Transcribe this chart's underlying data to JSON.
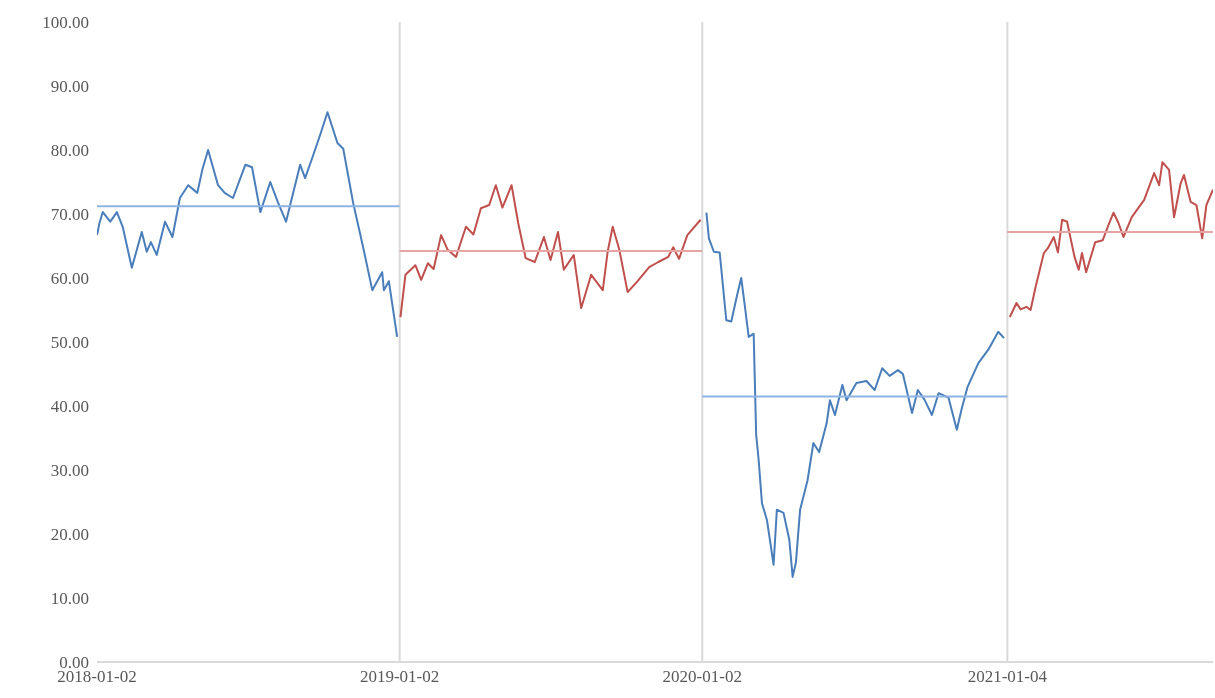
{
  "chart_data": {
    "type": "line",
    "marker": "none",
    "line_style": "solid",
    "grid": false,
    "legend": false,
    "xlim": [
      "2018-01-02",
      "2021-09-09"
    ],
    "xticks": [
      "2018-01-02",
      "2019-01-02",
      "2020-01-02",
      "2021-01-04"
    ],
    "ylim": [
      0,
      100
    ],
    "yticks": [
      {
        "value": 0,
        "label": "0.00"
      },
      {
        "value": 10,
        "label": "10.00"
      },
      {
        "value": 20,
        "label": "20.00"
      },
      {
        "value": 30,
        "label": "30.00"
      },
      {
        "value": 40,
        "label": "40.00"
      },
      {
        "value": 50,
        "label": "50.00"
      },
      {
        "value": 60,
        "label": "60.00"
      },
      {
        "value": 70,
        "label": "70.00"
      },
      {
        "value": 80,
        "label": "80.00"
      },
      {
        "value": 90,
        "label": "90.00"
      },
      {
        "value": 100,
        "label": "100.00"
      }
    ],
    "ref_lines": [
      {
        "axis": "x",
        "value": "2019-01-02",
        "color": "#d9d9d9"
      },
      {
        "axis": "x",
        "value": "2020-01-02",
        "color": "#d9d9d9"
      },
      {
        "axis": "x",
        "value": "2021-01-04",
        "color": "#d9d9d9"
      }
    ],
    "series": [
      {
        "color": "#4a7ebb",
        "x": [
          "2018-01-02",
          "2018-01-05",
          "2018-01-09",
          "2018-01-18",
          "2018-01-26",
          "2018-02-02",
          "2018-02-13",
          "2018-02-25",
          "2018-03-03",
          "2018-03-08",
          "2018-03-15",
          "2018-03-25",
          "2018-04-03",
          "2018-04-12",
          "2018-04-22",
          "2018-05-03",
          "2018-05-09",
          "2018-05-16",
          "2018-05-28",
          "2018-06-05",
          "2018-06-15",
          "2018-06-30",
          "2018-07-08",
          "2018-07-18",
          "2018-07-30",
          "2018-08-08",
          "2018-08-18",
          "2018-09-04",
          "2018-09-10",
          "2018-09-19",
          "2018-09-28",
          "2018-10-07",
          "2018-10-19",
          "2018-10-26",
          "2018-11-07",
          "2018-11-19",
          "2018-11-30",
          "2018-12-12",
          "2018-12-14",
          "2018-12-20",
          "2018-12-30"
        ],
        "values": [
          66.7,
          68.6,
          70.3,
          68.8,
          70.3,
          68,
          61.6,
          67.2,
          64.1,
          65.6,
          63.6,
          68.8,
          66.4,
          72.5,
          74.5,
          73.3,
          76.9,
          80,
          74.5,
          73.3,
          72.5,
          77.7,
          77.3,
          70.3,
          75,
          71.9,
          68.8,
          77.7,
          75.6,
          78.9,
          82.3,
          85.9,
          81.1,
          80.2,
          71.7,
          64.8,
          58.1,
          60.9,
          58.1,
          59.5,
          50.8
        ]
      },
      {
        "color": "#c0504d",
        "x": [
          "2019-01-03",
          "2019-01-09",
          "2019-01-21",
          "2019-01-28",
          "2019-02-05",
          "2019-02-12",
          "2019-02-21",
          "2019-03-01",
          "2019-03-11",
          "2019-03-23",
          "2019-04-01",
          "2019-04-10",
          "2019-04-20",
          "2019-04-28",
          "2019-05-06",
          "2019-05-17",
          "2019-05-25",
          "2019-06-03",
          "2019-06-14",
          "2019-06-25",
          "2019-07-03",
          "2019-07-12",
          "2019-07-19",
          "2019-07-31",
          "2019-08-09",
          "2019-08-21",
          "2019-09-04",
          "2019-09-10",
          "2019-09-16",
          "2019-09-24",
          "2019-10-04",
          "2019-10-16",
          "2019-10-30",
          "2019-11-10",
          "2019-11-22",
          "2019-11-28",
          "2019-12-05",
          "2019-12-15",
          "2019-12-31"
        ],
        "values": [
          53.9,
          60.5,
          62,
          59.7,
          62.3,
          61.4,
          66.7,
          64.4,
          63.3,
          68,
          66.8,
          70.9,
          71.4,
          74.5,
          71,
          74.5,
          68.6,
          63.1,
          62.5,
          66.4,
          62.8,
          67.2,
          61.3,
          63.6,
          55.3,
          60.5,
          58.1,
          64.2,
          68,
          64.4,
          57.8,
          59.5,
          61.7,
          62.5,
          63.3,
          64.8,
          63,
          66.7,
          69.1
        ]
      },
      {
        "color": "#4a7ebb",
        "x": [
          "2020-01-07",
          "2020-01-10",
          "2020-01-16",
          "2020-01-23",
          "2020-01-31",
          "2020-02-06",
          "2020-02-13",
          "2020-02-18",
          "2020-02-22",
          "2020-02-27",
          "2020-03-04",
          "2020-03-07",
          "2020-03-10",
          "2020-03-14",
          "2020-03-20",
          "2020-03-28",
          "2020-04-01",
          "2020-04-09",
          "2020-04-16",
          "2020-04-20",
          "2020-04-24",
          "2020-04-29",
          "2020-05-08",
          "2020-05-15",
          "2020-05-22",
          "2020-05-31",
          "2020-06-04",
          "2020-06-10",
          "2020-06-19",
          "2020-06-24",
          "2020-07-06",
          "2020-07-18",
          "2020-07-28",
          "2020-08-06",
          "2020-08-15",
          "2020-08-25",
          "2020-08-31",
          "2020-09-11",
          "2020-09-18",
          "2020-09-26",
          "2020-10-05",
          "2020-10-13",
          "2020-10-25",
          "2020-11-04",
          "2020-11-10",
          "2020-11-17",
          "2020-11-30",
          "2020-12-12",
          "2020-12-24",
          "2020-12-31"
        ],
        "values": [
          70.2,
          66.2,
          64.1,
          64,
          53.4,
          53.2,
          57.3,
          60,
          56,
          50.8,
          51.3,
          35.5,
          31.6,
          24.8,
          22.2,
          15.2,
          23.8,
          23.3,
          19.1,
          13.3,
          15.6,
          23.8,
          28.4,
          34.2,
          32.8,
          37.3,
          40.9,
          38.6,
          43.3,
          40.9,
          43.6,
          43.9,
          42.5,
          45.9,
          44.7,
          45.6,
          45,
          38.9,
          42.5,
          41,
          38.6,
          42,
          41.3,
          36.3,
          39.6,
          43,
          46.7,
          48.8,
          51.6,
          50.6
        ]
      },
      {
        "color": "#c0504d",
        "x": [
          "2021-01-07",
          "2021-01-15",
          "2021-01-20",
          "2021-01-27",
          "2021-02-01",
          "2021-02-07",
          "2021-02-17",
          "2021-02-22",
          "2021-03-01",
          "2021-03-06",
          "2021-03-11",
          "2021-03-17",
          "2021-03-26",
          "2021-03-31",
          "2021-04-04",
          "2021-04-09",
          "2021-04-20",
          "2021-04-29",
          "2021-05-06",
          "2021-05-12",
          "2021-05-18",
          "2021-05-24",
          "2021-06-03",
          "2021-06-18",
          "2021-06-30",
          "2021-07-06",
          "2021-07-10",
          "2021-07-18",
          "2021-07-24",
          "2021-08-01",
          "2021-08-05",
          "2021-08-13",
          "2021-08-20",
          "2021-08-27",
          "2021-09-01",
          "2021-09-09"
        ],
        "values": [
          53.9,
          56.1,
          55.1,
          55.5,
          55,
          58.6,
          63.9,
          64.7,
          66.4,
          64,
          69.1,
          68.8,
          63.3,
          61.3,
          63.9,
          60.9,
          65.6,
          65.9,
          68.3,
          70.2,
          68.6,
          66.4,
          69.5,
          72.2,
          76.4,
          74.5,
          78.1,
          76.9,
          69.5,
          74.8,
          76.1,
          71.9,
          71.4,
          66.2,
          71.4,
          73.8
        ]
      },
      {
        "type": "line",
        "color": "#8eb4e3",
        "x": [
          "2018-01-02",
          "2019-01-02"
        ],
        "values": [
          71.2,
          71.2
        ]
      },
      {
        "type": "line",
        "color": "#e6a4a2",
        "x": [
          "2019-01-02",
          "2020-01-02"
        ],
        "values": [
          64.2,
          64.2
        ]
      },
      {
        "type": "line",
        "color": "#8eb4e3",
        "x": [
          "2020-01-02",
          "2021-01-04"
        ],
        "values": [
          41.5,
          41.5
        ]
      },
      {
        "type": "line",
        "color": "#e6a4a2",
        "x": [
          "2021-01-04",
          "2021-09-09"
        ],
        "values": [
          67.2,
          67.2
        ]
      }
    ]
  }
}
